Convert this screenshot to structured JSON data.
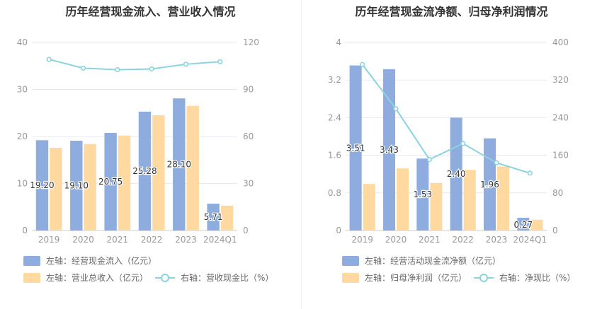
{
  "colors": {
    "bar1": "#8eadde",
    "bar2": "#ffd99f",
    "line": "#8cd3de",
    "grid": "#e6e9f0",
    "axis": "#999999",
    "label": "#333333"
  },
  "chart_data": [
    {
      "type": "bar",
      "title": "历年经营现金流入、营业收入情况",
      "categories": [
        "2019",
        "2020",
        "2021",
        "2022",
        "2023",
        "2024Q1"
      ],
      "left_axis": {
        "ylim": [
          0,
          40
        ],
        "ticks": [
          "0",
          "10",
          "20",
          "30",
          "40"
        ]
      },
      "right_axis": {
        "ylim": [
          0,
          120
        ],
        "ticks": [
          "0",
          "30",
          "60",
          "90",
          "120"
        ]
      },
      "series": [
        {
          "name": "左轴：经营现金流入（亿元）",
          "kind": "bar",
          "axis": "left",
          "values": [
            19.2,
            19.1,
            20.75,
            25.28,
            28.1,
            5.71
          ],
          "labels": [
            "19.20",
            "19.10",
            "20.75",
            "25.28",
            "28.10",
            "5.71"
          ]
        },
        {
          "name": "左轴：营业总收入（亿元）",
          "kind": "bar",
          "axis": "left",
          "values": [
            17.6,
            18.4,
            20.2,
            24.5,
            26.5,
            5.3
          ]
        },
        {
          "name": "右轴：营收现金比（%）",
          "kind": "line",
          "axis": "right",
          "values": [
            109.2,
            103.6,
            102.6,
            103.1,
            106.1,
            107.7
          ]
        }
      ],
      "legend": [
        "左轴：经营现金流入（亿元）",
        "左轴：营业总收入（亿元）",
        "右轴：营收现金比（%）"
      ]
    },
    {
      "type": "bar",
      "title": "历年经营现金流净额、归母净利润情况",
      "categories": [
        "2019",
        "2020",
        "2021",
        "2022",
        "2023",
        "2024Q1"
      ],
      "left_axis": {
        "ylim": [
          0,
          4
        ],
        "ticks": [
          "0",
          "0.8",
          "1.6",
          "2.4",
          "3.2",
          "4"
        ]
      },
      "right_axis": {
        "ylim": [
          0,
          400
        ],
        "ticks": [
          "0",
          "80",
          "160",
          "240",
          "320",
          "400"
        ]
      },
      "series": [
        {
          "name": "左轴：经营活动现金流净额（亿元）",
          "kind": "bar",
          "axis": "left",
          "values": [
            3.51,
            3.43,
            1.53,
            2.4,
            1.96,
            0.27
          ],
          "labels": [
            "3.51",
            "3.43",
            "1.53",
            "2.40",
            "1.96",
            "0.27"
          ]
        },
        {
          "name": "左轴：归母净利润（亿元）",
          "kind": "bar",
          "axis": "left",
          "values": [
            0.99,
            1.32,
            1.01,
            1.29,
            1.36,
            0.23
          ]
        },
        {
          "name": "右轴：净现比（%）",
          "kind": "line",
          "axis": "right",
          "values": [
            353,
            259,
            151,
            185,
            144,
            122
          ]
        }
      ],
      "legend": [
        "左轴：经营活动现金流净额（亿元）",
        "左轴：归母净利润（亿元）",
        "右轴：净现比（%）"
      ]
    }
  ]
}
